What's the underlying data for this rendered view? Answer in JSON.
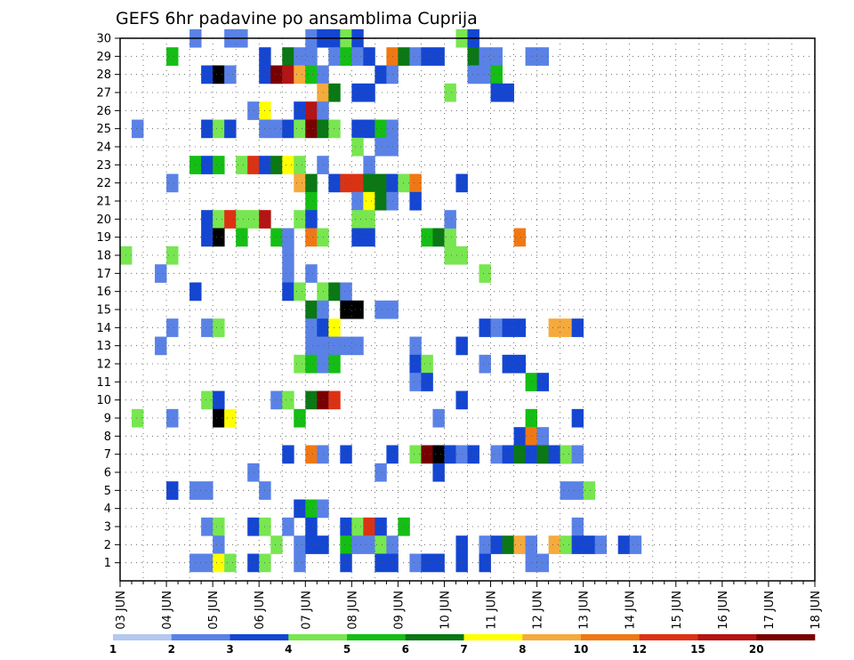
{
  "chart_data": {
    "type": "heatmap",
    "title": "GEFS 6hr padavine po ansamblima Cuprija",
    "xlabel": "",
    "ylabel": "",
    "x_ticks": [
      "03 JUN",
      "04 JUN",
      "05 JUN",
      "06 JUN",
      "07 JUN",
      "08 JUN",
      "09 JUN",
      "10 JUN",
      "11 JUN",
      "12 JUN",
      "13 JUN",
      "14 JUN",
      "15 JUN",
      "16 JUN",
      "17 JUN",
      "18 JUN"
    ],
    "x_range": [
      "03 JUN 00",
      "18 JUN 00"
    ],
    "x_step_hours": 6,
    "y_ticks": [
      1,
      2,
      3,
      4,
      5,
      6,
      7,
      8,
      9,
      10,
      11,
      12,
      13,
      14,
      15,
      16,
      17,
      18,
      19,
      20,
      21,
      22,
      23,
      24,
      25,
      26,
      27,
      28,
      29,
      30
    ],
    "ylim": [
      0,
      30
    ],
    "grid": true,
    "legend_position": "bottom",
    "colorbar": {
      "labels": [
        "1",
        "2",
        "3",
        "4",
        "5",
        "6",
        "7",
        "8",
        "10",
        "12",
        "15",
        "20"
      ],
      "colors": [
        "#b4c8f0",
        "#5a82e6",
        "#1446d2",
        "#78e650",
        "#14be14",
        "#0a7814",
        "#ffff00",
        "#f5aa3c",
        "#f07814",
        "#dc3214",
        "#b41414",
        "#780000"
      ]
    },
    "cells": [
      [
        6,
        30,
        1
      ],
      [
        9,
        30,
        1
      ],
      [
        10,
        30,
        1
      ],
      [
        16,
        30,
        1
      ],
      [
        17,
        30,
        2
      ],
      [
        18,
        30,
        2
      ],
      [
        19,
        30,
        3
      ],
      [
        20,
        30,
        2
      ],
      [
        29,
        30,
        3
      ],
      [
        30,
        30,
        2
      ],
      [
        4,
        29,
        4
      ],
      [
        12,
        29,
        2
      ],
      [
        14,
        29,
        5
      ],
      [
        15,
        29,
        1
      ],
      [
        16,
        29,
        1
      ],
      [
        18,
        29,
        1
      ],
      [
        19,
        29,
        4
      ],
      [
        20,
        29,
        1
      ],
      [
        21,
        29,
        2
      ],
      [
        23,
        29,
        8
      ],
      [
        24,
        29,
        5
      ],
      [
        25,
        29,
        1
      ],
      [
        26,
        29,
        2
      ],
      [
        27,
        29,
        2
      ],
      [
        30,
        29,
        5
      ],
      [
        32,
        29,
        1
      ],
      [
        31,
        29,
        1
      ],
      [
        35,
        29,
        1
      ],
      [
        36,
        29,
        1
      ],
      [
        7,
        28,
        2
      ],
      [
        8,
        28,
        12
      ],
      [
        9,
        28,
        1
      ],
      [
        12,
        28,
        2
      ],
      [
        13,
        28,
        11
      ],
      [
        14,
        28,
        10
      ],
      [
        15,
        28,
        7
      ],
      [
        16,
        28,
        4
      ],
      [
        17,
        28,
        1
      ],
      [
        22,
        28,
        2
      ],
      [
        23,
        28,
        1
      ],
      [
        30,
        28,
        1
      ],
      [
        31,
        28,
        1
      ],
      [
        32,
        28,
        4
      ],
      [
        17,
        27,
        7
      ],
      [
        18,
        27,
        5
      ],
      [
        20,
        27,
        2
      ],
      [
        21,
        27,
        2
      ],
      [
        28,
        27,
        3
      ],
      [
        32,
        27,
        2
      ],
      [
        33,
        27,
        2
      ],
      [
        11,
        26,
        1
      ],
      [
        12,
        26,
        6
      ],
      [
        15,
        26,
        2
      ],
      [
        16,
        26,
        10
      ],
      [
        17,
        26,
        1
      ],
      [
        1,
        25,
        1
      ],
      [
        7,
        25,
        2
      ],
      [
        8,
        25,
        3
      ],
      [
        9,
        25,
        2
      ],
      [
        12,
        25,
        1
      ],
      [
        13,
        25,
        1
      ],
      [
        14,
        25,
        2
      ],
      [
        15,
        25,
        3
      ],
      [
        16,
        25,
        11
      ],
      [
        17,
        25,
        5
      ],
      [
        18,
        25,
        3
      ],
      [
        20,
        25,
        2
      ],
      [
        21,
        25,
        2
      ],
      [
        22,
        25,
        4
      ],
      [
        23,
        25,
        1
      ],
      [
        20,
        24,
        3
      ],
      [
        22,
        24,
        1
      ],
      [
        23,
        24,
        1
      ],
      [
        6,
        23,
        4
      ],
      [
        7,
        23,
        2
      ],
      [
        8,
        23,
        4
      ],
      [
        10,
        23,
        3
      ],
      [
        11,
        23,
        9
      ],
      [
        12,
        23,
        2
      ],
      [
        13,
        23,
        5
      ],
      [
        14,
        23,
        6
      ],
      [
        15,
        23,
        3
      ],
      [
        17,
        23,
        1
      ],
      [
        21,
        23,
        1
      ],
      [
        4,
        22,
        1
      ],
      [
        15,
        22,
        7
      ],
      [
        16,
        22,
        5
      ],
      [
        18,
        22,
        2
      ],
      [
        19,
        22,
        9
      ],
      [
        20,
        22,
        9
      ],
      [
        21,
        22,
        5
      ],
      [
        22,
        22,
        5
      ],
      [
        23,
        22,
        2
      ],
      [
        24,
        22,
        3
      ],
      [
        25,
        22,
        8
      ],
      [
        29,
        22,
        2
      ],
      [
        16,
        21,
        4
      ],
      [
        20,
        21,
        1
      ],
      [
        21,
        21,
        6
      ],
      [
        22,
        21,
        5
      ],
      [
        23,
        21,
        1
      ],
      [
        25,
        21,
        2
      ],
      [
        7,
        20,
        2
      ],
      [
        8,
        20,
        3
      ],
      [
        9,
        20,
        9
      ],
      [
        10,
        20,
        3
      ],
      [
        11,
        20,
        3
      ],
      [
        12,
        20,
        10
      ],
      [
        15,
        20,
        3
      ],
      [
        16,
        20,
        2
      ],
      [
        20,
        20,
        3
      ],
      [
        21,
        20,
        3
      ],
      [
        7,
        19,
        2
      ],
      [
        8,
        19,
        12
      ],
      [
        10,
        19,
        4
      ],
      [
        13,
        19,
        4
      ],
      [
        14,
        19,
        1
      ],
      [
        16,
        19,
        8
      ],
      [
        17,
        19,
        3
      ],
      [
        20,
        19,
        2
      ],
      [
        21,
        19,
        2
      ],
      [
        26,
        19,
        4
      ],
      [
        27,
        19,
        5
      ],
      [
        28,
        19,
        3
      ],
      [
        34,
        19,
        8
      ],
      [
        28,
        20,
        1
      ],
      [
        0,
        18,
        3
      ],
      [
        4,
        18,
        3
      ],
      [
        14,
        18,
        1
      ],
      [
        28,
        18,
        3
      ],
      [
        29,
        18,
        3
      ],
      [
        3,
        17,
        1
      ],
      [
        14,
        17,
        1
      ],
      [
        16,
        17,
        1
      ],
      [
        31,
        17,
        3
      ],
      [
        6,
        16,
        2
      ],
      [
        14,
        16,
        2
      ],
      [
        15,
        16,
        3
      ],
      [
        17,
        16,
        3
      ],
      [
        18,
        16,
        5
      ],
      [
        19,
        16,
        1
      ],
      [
        16,
        15,
        5
      ],
      [
        17,
        15,
        1
      ],
      [
        19,
        15,
        12
      ],
      [
        20,
        15,
        12
      ],
      [
        22,
        15,
        1
      ],
      [
        23,
        15,
        1
      ],
      [
        4,
        14,
        1
      ],
      [
        7,
        14,
        1
      ],
      [
        8,
        14,
        3
      ],
      [
        16,
        14,
        1
      ],
      [
        17,
        14,
        2
      ],
      [
        18,
        14,
        6
      ],
      [
        31,
        14,
        2
      ],
      [
        32,
        14,
        1
      ],
      [
        33,
        14,
        2
      ],
      [
        34,
        14,
        2
      ],
      [
        37,
        14,
        7
      ],
      [
        38,
        14,
        7
      ],
      [
        39,
        14,
        2
      ],
      [
        3,
        13,
        1
      ],
      [
        16,
        13,
        1
      ],
      [
        17,
        13,
        1
      ],
      [
        18,
        13,
        1
      ],
      [
        19,
        13,
        1
      ],
      [
        20,
        13,
        1
      ],
      [
        25,
        13,
        1
      ],
      [
        29,
        13,
        2
      ],
      [
        15,
        12,
        3
      ],
      [
        16,
        12,
        4
      ],
      [
        17,
        12,
        1
      ],
      [
        18,
        12,
        4
      ],
      [
        25,
        12,
        2
      ],
      [
        26,
        12,
        3
      ],
      [
        31,
        12,
        1
      ],
      [
        33,
        12,
        2
      ],
      [
        34,
        12,
        2
      ],
      [
        25,
        11,
        1
      ],
      [
        26,
        11,
        2
      ],
      [
        35,
        11,
        4
      ],
      [
        36,
        11,
        2
      ],
      [
        7,
        10,
        3
      ],
      [
        8,
        10,
        2
      ],
      [
        13,
        10,
        1
      ],
      [
        14,
        10,
        3
      ],
      [
        16,
        10,
        5
      ],
      [
        17,
        10,
        11
      ],
      [
        18,
        10,
        9
      ],
      [
        29,
        10,
        2
      ],
      [
        1,
        9,
        3
      ],
      [
        4,
        9,
        1
      ],
      [
        8,
        9,
        12
      ],
      [
        9,
        9,
        6
      ],
      [
        15,
        9,
        4
      ],
      [
        27,
        9,
        1
      ],
      [
        35,
        9,
        4
      ],
      [
        39,
        9,
        2
      ],
      [
        34,
        8,
        2
      ],
      [
        35,
        8,
        8
      ],
      [
        36,
        8,
        1
      ],
      [
        14,
        7,
        2
      ],
      [
        16,
        7,
        8
      ],
      [
        17,
        7,
        1
      ],
      [
        19,
        7,
        2
      ],
      [
        23,
        7,
        2
      ],
      [
        25,
        7,
        3
      ],
      [
        26,
        7,
        11
      ],
      [
        27,
        7,
        12
      ],
      [
        28,
        7,
        2
      ],
      [
        29,
        7,
        1
      ],
      [
        30,
        7,
        2
      ],
      [
        32,
        7,
        1
      ],
      [
        33,
        7,
        2
      ],
      [
        34,
        7,
        5
      ],
      [
        36,
        7,
        1
      ],
      [
        37,
        7,
        1
      ],
      [
        38,
        7,
        2
      ],
      [
        35,
        7,
        2
      ],
      [
        36,
        7,
        5
      ],
      [
        37,
        7,
        2
      ],
      [
        38,
        7,
        3
      ],
      [
        39,
        7,
        1
      ],
      [
        11,
        6,
        1
      ],
      [
        22,
        6,
        1
      ],
      [
        27,
        6,
        2
      ],
      [
        4,
        5,
        2
      ],
      [
        6,
        5,
        1
      ],
      [
        7,
        5,
        1
      ],
      [
        12,
        5,
        1
      ],
      [
        38,
        5,
        1
      ],
      [
        39,
        5,
        1
      ],
      [
        40,
        5,
        3
      ],
      [
        15,
        4,
        2
      ],
      [
        16,
        4,
        4
      ],
      [
        17,
        4,
        1
      ],
      [
        7,
        3,
        1
      ],
      [
        8,
        3,
        3
      ],
      [
        11,
        3,
        2
      ],
      [
        12,
        3,
        3
      ],
      [
        14,
        3,
        1
      ],
      [
        16,
        3,
        2
      ],
      [
        19,
        3,
        2
      ],
      [
        20,
        3,
        3
      ],
      [
        21,
        3,
        9
      ],
      [
        22,
        3,
        2
      ],
      [
        24,
        3,
        4
      ],
      [
        39,
        3,
        1
      ],
      [
        8,
        2,
        1
      ],
      [
        13,
        2,
        3
      ],
      [
        15,
        2,
        1
      ],
      [
        16,
        2,
        2
      ],
      [
        17,
        2,
        2
      ],
      [
        19,
        2,
        4
      ],
      [
        20,
        2,
        1
      ],
      [
        21,
        2,
        1
      ],
      [
        22,
        2,
        3
      ],
      [
        23,
        2,
        1
      ],
      [
        29,
        2,
        2
      ],
      [
        31,
        2,
        1
      ],
      [
        32,
        2,
        2
      ],
      [
        33,
        2,
        5
      ],
      [
        34,
        2,
        7
      ],
      [
        35,
        2,
        1
      ],
      [
        37,
        2,
        7
      ],
      [
        38,
        2,
        3
      ],
      [
        39,
        2,
        2
      ],
      [
        40,
        2,
        2
      ],
      [
        41,
        2,
        1
      ],
      [
        43,
        2,
        2
      ],
      [
        44,
        2,
        1
      ],
      [
        6,
        1,
        1
      ],
      [
        7,
        1,
        1
      ],
      [
        8,
        1,
        6
      ],
      [
        9,
        1,
        3
      ],
      [
        11,
        1,
        2
      ],
      [
        12,
        1,
        3
      ],
      [
        15,
        1,
        1
      ],
      [
        19,
        1,
        2
      ],
      [
        22,
        1,
        2
      ],
      [
        23,
        1,
        2
      ],
      [
        25,
        1,
        1
      ],
      [
        26,
        1,
        2
      ],
      [
        27,
        1,
        2
      ],
      [
        29,
        1,
        2
      ],
      [
        31,
        1,
        2
      ],
      [
        35,
        1,
        1
      ],
      [
        36,
        1,
        1
      ]
    ]
  }
}
